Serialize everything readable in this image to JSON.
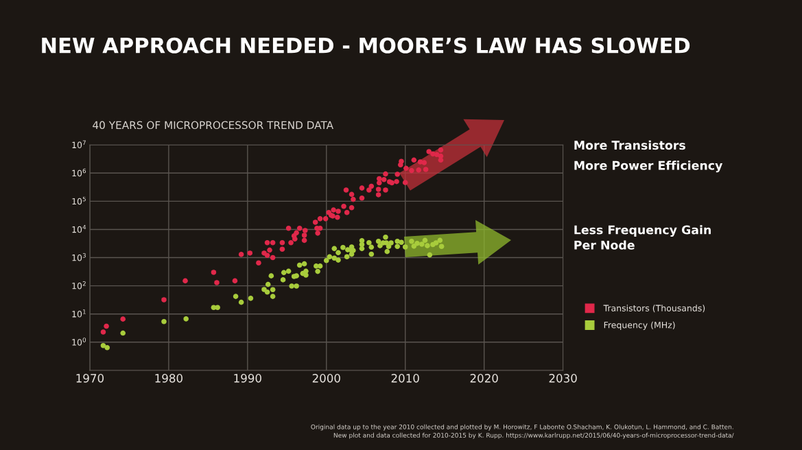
{
  "chart_data": {
    "type": "scatter",
    "title": "NEW APPROACH NEEDED - MOORE’S LAW HAS SLOWED",
    "subtitle": "40 YEARS OF MICROPROCESSOR TREND DATA",
    "annotations": [
      "More Transistors",
      "More Power Efficiency",
      "Less Frequency Gain Per Node",
      "Original data up to the year 2010 collected and plotted by M. Horowitz, F Labonte O.Shacham, K. Olukotun, L. Hammond, and C. Batten.\nNew plot and data collected for 2010-2015 by K. Rupp. https://www.karlrupp.net/2015/06/40-years-of-microprocessor-trend-data/"
    ],
    "log": "y",
    "grid": true,
    "legend": "right",
    "marker": "circle",
    "xlim": [
      1970,
      2030
    ],
    "xticks": [
      1970,
      1980,
      1990,
      2000,
      2010,
      2020,
      2030
    ],
    "ylim": [
      0.1,
      10000000
    ],
    "yticks": [
      {
        "value": 1,
        "label": "10$^{0}$"
      },
      {
        "value": 10,
        "label": "10$^{1}$"
      },
      {
        "value": 100,
        "label": "10$^{2}$"
      },
      {
        "value": 1000,
        "label": "10$^{3}$"
      },
      {
        "value": 10000,
        "label": "10$^{4}$"
      },
      {
        "value": 100000,
        "label": "10$^{5}$"
      },
      {
        "value": 1000000,
        "label": "10$^{6}$"
      },
      {
        "value": 10000000,
        "label": "10$^{7}$"
      }
    ],
    "series": [
      {
        "name": "Transistors (Thousands)",
        "color": "#e0284a",
        "x": [
          1971.7,
          1972.1,
          1974.2,
          1979.4,
          1982.1,
          1985.7,
          1986.1,
          1988.4,
          1989.2,
          1990.3,
          1991.4,
          1992.5,
          1993.2,
          1992.8,
          1992.1,
          1992.5,
          1993.2,
          1994.4,
          1994.4,
          1995.2,
          1995.5,
          1995.9,
          1996.2,
          1996.0,
          1996.6,
          1997.2,
          1997.2,
          1997.3,
          1998.6,
          1998.8,
          1999.2,
          1998.9,
          1999.2,
          1999.9,
          2000.3,
          2000.6,
          2000.9,
          2000.8,
          2001.5,
          2001.4,
          2002.2,
          2002.6,
          2003.2,
          2002.5,
          2003.2,
          2003.4,
          2004.5,
          2004.5,
          2005.4,
          2005.7,
          2006.7,
          2006.7,
          2006.6,
          2006.6,
          2007.5,
          2007.5,
          2007.3,
          2008.0,
          2008.3,
          2009.0,
          2008.9,
          2010.0,
          2009.5,
          2009.4,
          2010.1,
          2010.8,
          2011.1,
          2011.7,
          2011.9,
          2012.4,
          2012.6,
          2013.0,
          2013.5,
          2014.0,
          2014.5,
          2014.5,
          2014.5
        ],
        "values": [
          2.3,
          3.7,
          6.6,
          32,
          150,
          300,
          130,
          150,
          1300,
          1450,
          650,
          3400,
          3400,
          1850,
          1450,
          1200,
          1000,
          3400,
          2000,
          11000,
          3400,
          5900,
          7600,
          4600,
          11000,
          6200,
          4100,
          9200,
          18000,
          11000,
          11000,
          7400,
          24000,
          24000,
          40000,
          32000,
          49000,
          30000,
          44000,
          27000,
          66000,
          40000,
          59000,
          250000,
          175000,
          117000,
          130000,
          295000,
          250000,
          340000,
          450000,
          630000,
          265000,
          170000,
          250000,
          930000,
          590000,
          490000,
          450000,
          910000,
          500000,
          460000,
          2600000,
          1960000,
          1480000,
          1230000,
          2900000,
          1280000,
          2500000,
          2350000,
          1350000,
          5800000,
          4800000,
          4550000,
          6600000,
          2900000,
          4000000
        ]
      },
      {
        "name": "Frequency (MHz)",
        "color": "#a8cc3c",
        "x": [
          1971.7,
          1972.2,
          1974.2,
          1979.4,
          1982.2,
          1985.7,
          1986.2,
          1988.5,
          1989.2,
          1990.4,
          1992.1,
          1992.5,
          1992.6,
          1993.0,
          1993.2,
          1993.2,
          1994.5,
          1994.6,
          1995.2,
          1995.6,
          1996.2,
          1995.9,
          1996.2,
          1996.6,
          1997.2,
          1997.4,
          1997.0,
          1997.4,
          1998.7,
          1999.2,
          1998.9,
          2000.0,
          2000.4,
          2001.0,
          2001.0,
          2001.5,
          2001.5,
          2002.1,
          2002.7,
          2002.6,
          2003.2,
          2003.2,
          2003.2,
          2003.4,
          2004.5,
          2004.5,
          2004.5,
          2005.4,
          2005.7,
          2005.7,
          2006.6,
          2006.8,
          2007.2,
          2007.5,
          2007.6,
          2007.9,
          2007.7,
          2008.2,
          2009.0,
          2009.0,
          2009.5,
          2010.0,
          2010.8,
          2011.1,
          2011.5,
          2012.1,
          2012.5,
          2012.8,
          2013.1,
          2013.5,
          2013.9,
          2014.4,
          2014.6
        ],
        "values": [
          0.76,
          0.64,
          2.1,
          5.4,
          6.7,
          17,
          17,
          42,
          26,
          36,
          74,
          60,
          112,
          225,
          73,
          42,
          163,
          295,
          330,
          98,
          98,
          215,
          225,
          540,
          600,
          330,
          275,
          240,
          500,
          500,
          325,
          790,
          1070,
          960,
          2100,
          1500,
          820,
          2300,
          1900,
          1080,
          2400,
          1750,
          1320,
          1800,
          4000,
          2900,
          2100,
          3400,
          2350,
          1330,
          3800,
          2650,
          3350,
          5300,
          3350,
          2500,
          1650,
          3350,
          3800,
          2500,
          3500,
          2400,
          3800,
          2550,
          3200,
          3000,
          4100,
          2650,
          1250,
          2900,
          3350,
          4100,
          2500
        ]
      }
    ]
  }
}
